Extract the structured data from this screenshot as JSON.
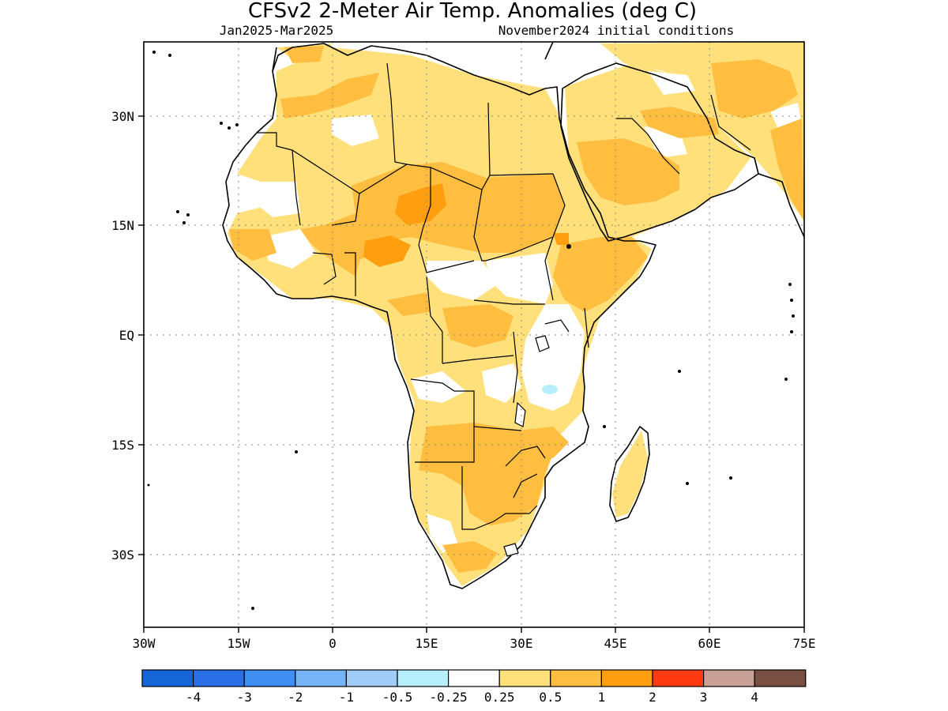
{
  "title": "CFSv2 2-Meter Air Temp. Anomalies (deg C)",
  "subtitle_left": "Jan2025-Mar2025",
  "subtitle_right": "November2024 initial conditions",
  "axes": {
    "x_ticks": [
      "30W",
      "15W",
      "0",
      "15E",
      "30E",
      "45E",
      "60E",
      "75E"
    ],
    "y_ticks": [
      "30N",
      "15N",
      "EQ",
      "15S",
      "30S"
    ]
  },
  "legend": {
    "colors": [
      "#1565d6",
      "#2b6fe6",
      "#3f8ff2",
      "#76b4f7",
      "#9fcdf8",
      "#b6eefb",
      "#ffffff",
      "#ffe07a",
      "#ffbe40",
      "#ff9f10",
      "#ff3a12",
      "#c9a095",
      "#7a4f43"
    ],
    "labels": [
      "-4",
      "-3",
      "-2",
      "-1",
      "-0.5",
      "-0.25",
      "0.25",
      "0.5",
      "1",
      "2",
      "3",
      "4"
    ]
  },
  "colors": {
    "land_outline": "#000000",
    "anomaly_light": "#ffe07a",
    "anomaly_medium": "#ffbe40",
    "anomaly_strong": "#ff9f10",
    "cool_pocket": "#b6eefb",
    "grid": "#8a8a8a"
  }
}
